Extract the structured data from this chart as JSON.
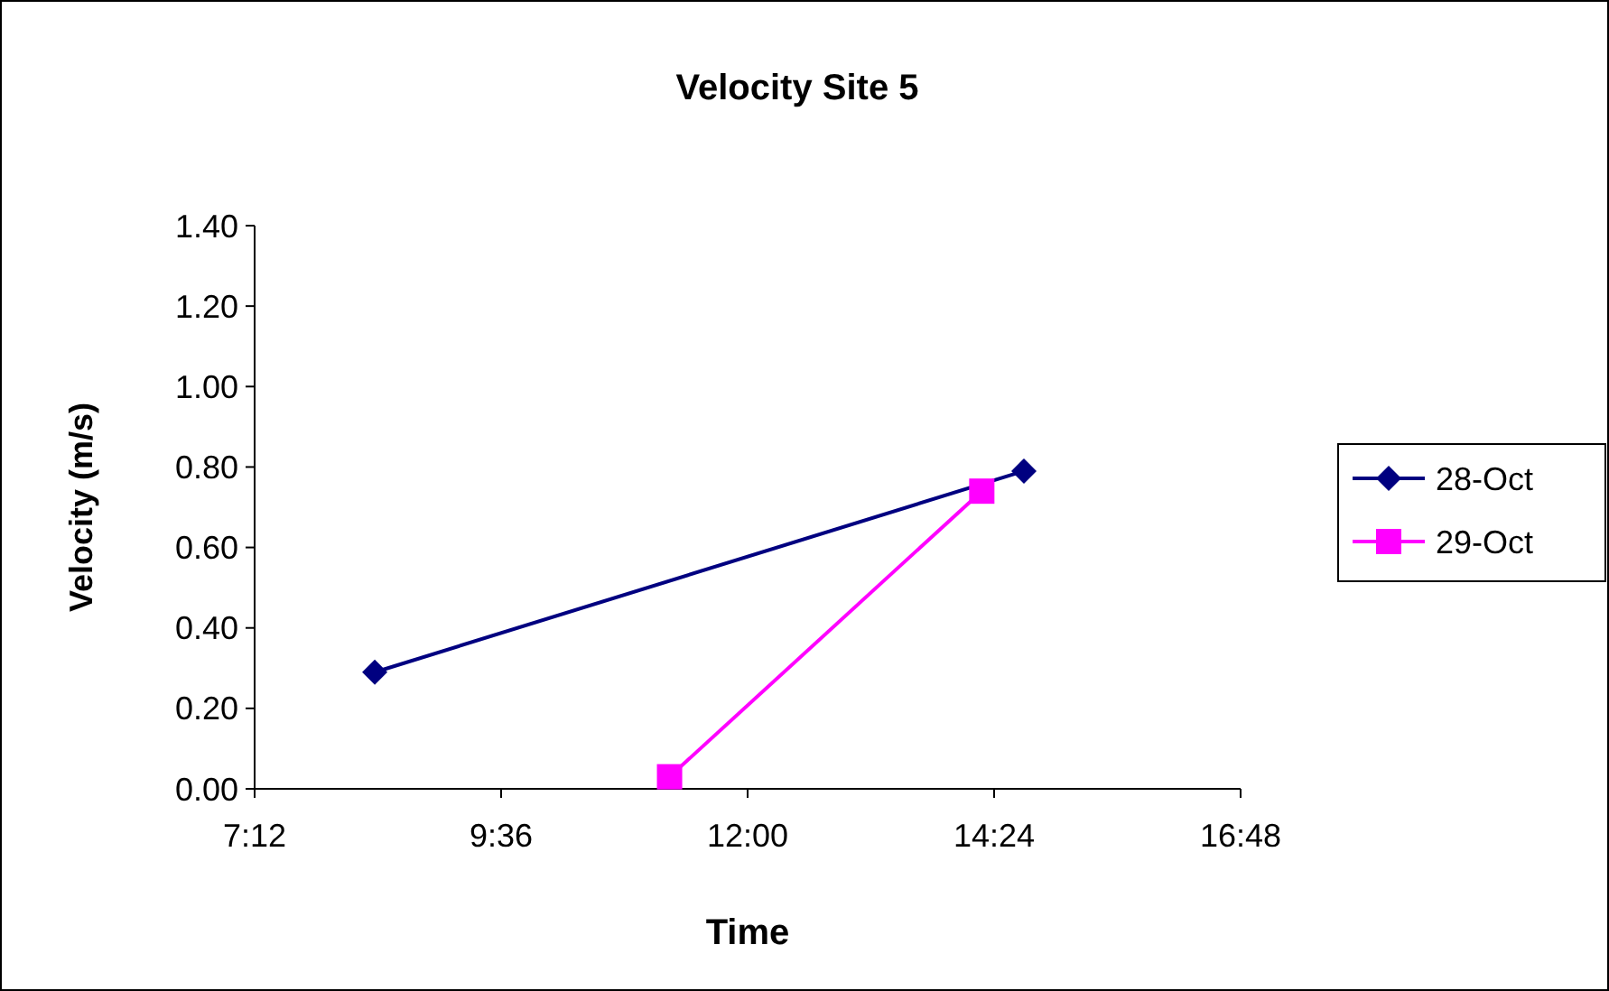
{
  "chart_data": {
    "type": "line",
    "title": "Velocity Site 5",
    "xlabel": "Time",
    "ylabel": "Velocity (m/s)",
    "xlim": [
      7.2,
      16.8
    ],
    "xticks": [
      {
        "value": 7.2,
        "label": "7:12"
      },
      {
        "value": 9.6,
        "label": "9:36"
      },
      {
        "value": 12,
        "label": "12:00"
      },
      {
        "value": 14.4,
        "label": "14:24"
      },
      {
        "value": 16.8,
        "label": "16:48"
      }
    ],
    "ylim": [
      0,
      1.4
    ],
    "yticks": [
      {
        "value": 0,
        "label": "0.00"
      },
      {
        "value": 0.2,
        "label": "0.20"
      },
      {
        "value": 0.4,
        "label": "0.40"
      },
      {
        "value": 0.6,
        "label": "0.60"
      },
      {
        "value": 0.8,
        "label": "0.80"
      },
      {
        "value": 1,
        "label": "1.00"
      },
      {
        "value": 1.2,
        "label": "1.20"
      },
      {
        "value": 1.4,
        "label": "1.40"
      }
    ],
    "grid": false,
    "legend": "right",
    "line_style": "solid",
    "series": [
      {
        "name": "28-Oct",
        "color": "#000080",
        "marker": "diamond",
        "x": [
          8.37,
          14.69
        ],
        "values": [
          0.29,
          0.79
        ]
      },
      {
        "name": "29-Oct",
        "color": "#ff00ff",
        "marker": "square",
        "x": [
          11.24,
          14.28
        ],
        "values": [
          0.03,
          0.74
        ]
      }
    ]
  }
}
